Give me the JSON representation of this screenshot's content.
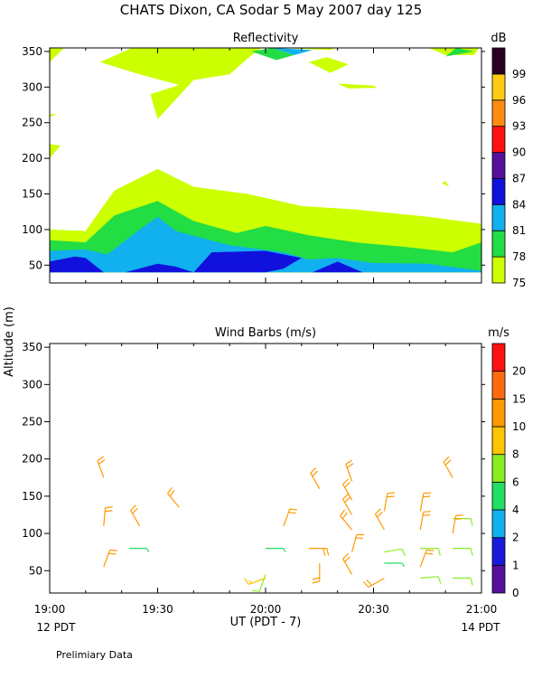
{
  "title": "CHATS Dixon, CA  Sodar    5 May 2007  day 125",
  "ylabel": "Altitude (m)",
  "xlabel": "UT  (PDT - 7)",
  "x_ticks": [
    "19:00",
    "19:30",
    "20:00",
    "20:30",
    "21:00"
  ],
  "local_time_left": "12 PDT",
  "local_time_right": "14 PDT",
  "footer": "Prelimiary Data",
  "chart_data": [
    {
      "type": "heatmap",
      "title": "Reflectivity",
      "xlim_minutes_ut": [
        1140,
        1260
      ],
      "ylim": [
        25,
        355
      ],
      "y_ticks": [
        50,
        100,
        150,
        200,
        250,
        300,
        350
      ],
      "colorbar": {
        "unit": "dB",
        "levels": [
          75,
          78,
          81,
          84,
          87,
          90,
          93,
          96,
          99
        ],
        "labels": [
          "75",
          "78",
          "81",
          "84",
          "87",
          "90",
          "93",
          "96",
          "99"
        ],
        "colors": [
          "#ccff00",
          "#22dd44",
          "#11b0ee",
          "#1111dd",
          "#55119c",
          "#ff1111",
          "#ff8c11",
          "#ffcc11",
          "#2a0025"
        ]
      },
      "regions": [
        {
          "level": 75,
          "points": [
            [
              1140,
              100
            ],
            [
              1150,
              98
            ],
            [
              1158,
              155
            ],
            [
              1170,
              185
            ],
            [
              1180,
              160
            ],
            [
              1195,
              150
            ],
            [
              1210,
              133
            ],
            [
              1225,
              128
            ],
            [
              1245,
              118
            ],
            [
              1260,
              108
            ],
            [
              1260,
              40
            ],
            [
              1140,
              40
            ]
          ]
        },
        {
          "level": 75,
          "points": [
            [
              1140,
              220
            ],
            [
              1143,
              218
            ],
            [
              1140,
              200
            ]
          ]
        },
        {
          "level": 75,
          "points": [
            [
              1140,
              335
            ],
            [
              1145,
              360
            ],
            [
              1140,
              360
            ]
          ]
        },
        {
          "level": 75,
          "points": [
            [
              1140,
              262
            ],
            [
              1142,
              262
            ],
            [
              1140,
              258
            ]
          ]
        },
        {
          "level": 75,
          "points": [
            [
              1154,
              335
            ],
            [
              1165,
              318
            ],
            [
              1176,
              303
            ],
            [
              1168,
              290
            ],
            [
              1170,
              255
            ],
            [
              1180,
              310
            ],
            [
              1190,
              318
            ],
            [
              1195,
              340
            ],
            [
              1200,
              360
            ],
            [
              1165,
              360
            ]
          ]
        },
        {
          "level": 75,
          "points": [
            [
              1180,
              360
            ],
            [
              1218,
              352
            ],
            [
              1222,
              360
            ]
          ]
        },
        {
          "level": 75,
          "points": [
            [
              1212,
              335
            ],
            [
              1218,
              320
            ],
            [
              1223,
              332
            ],
            [
              1217,
              342
            ]
          ]
        },
        {
          "level": 75,
          "points": [
            [
              1220,
              305
            ],
            [
              1230,
              302
            ],
            [
              1231,
              299
            ],
            [
              1223,
              298
            ]
          ]
        },
        {
          "level": 75,
          "points": [
            [
              1243,
              360
            ],
            [
              1250,
              345
            ],
            [
              1258,
              345
            ],
            [
              1260,
              360
            ]
          ]
        },
        {
          "level": 75,
          "points": [
            [
              1249,
              165
            ],
            [
              1251,
              160
            ],
            [
              1250,
              168
            ]
          ]
        },
        {
          "level": 78,
          "points": [
            [
              1140,
              85
            ],
            [
              1150,
              82
            ],
            [
              1158,
              120
            ],
            [
              1170,
              140
            ],
            [
              1180,
              112
            ],
            [
              1192,
              95
            ],
            [
              1200,
              105
            ],
            [
              1212,
              92
            ],
            [
              1225,
              82
            ],
            [
              1240,
              75
            ],
            [
              1252,
              68
            ],
            [
              1260,
              82
            ],
            [
              1260,
              40
            ],
            [
              1140,
              40
            ]
          ]
        },
        {
          "level": 78,
          "points": [
            [
              1196,
              350
            ],
            [
              1202,
              355
            ],
            [
              1208,
              345
            ],
            [
              1203,
              338
            ]
          ]
        },
        {
          "level": 78,
          "points": [
            [
              1250,
              343
            ],
            [
              1253,
              355
            ],
            [
              1258,
              350
            ]
          ]
        },
        {
          "level": 81,
          "points": [
            [
              1140,
              70
            ],
            [
              1150,
              72
            ],
            [
              1156,
              65
            ],
            [
              1165,
              100
            ],
            [
              1170,
              118
            ],
            [
              1175,
              98
            ],
            [
              1190,
              78
            ],
            [
              1205,
              68
            ],
            [
              1212,
              58
            ],
            [
              1220,
              60
            ],
            [
              1230,
              53
            ],
            [
              1245,
              52
            ],
            [
              1260,
              42
            ],
            [
              1260,
              40
            ],
            [
              1140,
              40
            ]
          ]
        },
        {
          "level": 81,
          "points": [
            [
              1202,
              355
            ],
            [
              1208,
              345
            ],
            [
              1213,
              352
            ]
          ]
        },
        {
          "level": 84,
          "points": [
            [
              1140,
              40
            ],
            [
              1140,
              55
            ],
            [
              1147,
              62
            ],
            [
              1150,
              60
            ],
            [
              1155,
              40
            ]
          ]
        },
        {
          "level": 84,
          "points": [
            [
              1161,
              40
            ],
            [
              1170,
              52
            ],
            [
              1175,
              48
            ],
            [
              1180,
              40
            ]
          ]
        },
        {
          "level": 84,
          "points": [
            [
              1180,
              40
            ],
            [
              1185,
              68
            ],
            [
              1200,
              70
            ],
            [
              1210,
              60
            ],
            [
              1205,
              45
            ],
            [
              1200,
              40
            ]
          ]
        },
        {
          "level": 84,
          "points": [
            [
              1213,
              40
            ],
            [
              1220,
              55
            ],
            [
              1227,
              40
            ]
          ]
        }
      ]
    },
    {
      "type": "scatter",
      "title": "Wind Barbs (m/s)",
      "xlim_minutes_ut": [
        1140,
        1260
      ],
      "ylim": [
        20,
        355
      ],
      "y_ticks": [
        50,
        100,
        150,
        200,
        250,
        300,
        350
      ],
      "colorbar": {
        "unit": "m/s",
        "levels": [
          0,
          1,
          2,
          4,
          6,
          8,
          10,
          15,
          20
        ],
        "labels": [
          "0",
          "1",
          "2",
          "4",
          "6",
          "8",
          "10",
          "15",
          "20"
        ],
        "colors": [
          "#55119c",
          "#1a1add",
          "#11b0ee",
          "#22dd66",
          "#88ee22",
          "#ffc400",
          "#ff9900",
          "#ff6a11",
          "#ff1111"
        ]
      },
      "barbs": [
        {
          "t": 1155,
          "alt": 175,
          "speed": 10,
          "dir": 340
        },
        {
          "t": 1155,
          "alt": 110,
          "speed": 10,
          "dir": 5
        },
        {
          "t": 1155,
          "alt": 55,
          "speed": 10,
          "dir": 20
        },
        {
          "t": 1162,
          "alt": 80,
          "speed": 4,
          "dir": 90
        },
        {
          "t": 1165,
          "alt": 110,
          "speed": 10,
          "dir": 330
        },
        {
          "t": 1176,
          "alt": 135,
          "speed": 10,
          "dir": 320
        },
        {
          "t": 1200,
          "alt": 80,
          "speed": 4,
          "dir": 90
        },
        {
          "t": 1200,
          "alt": 45,
          "speed": 6,
          "dir": 200
        },
        {
          "t": 1200,
          "alt": 40,
          "speed": 8,
          "dir": 250
        },
        {
          "t": 1205,
          "alt": 110,
          "speed": 10,
          "dir": 20
        },
        {
          "t": 1212,
          "alt": 80,
          "speed": 10,
          "dir": 90
        },
        {
          "t": 1215,
          "alt": 160,
          "speed": 10,
          "dir": 330
        },
        {
          "t": 1215,
          "alt": 60,
          "speed": 10,
          "dir": 180
        },
        {
          "t": 1224,
          "alt": 170,
          "speed": 10,
          "dir": 340
        },
        {
          "t": 1224,
          "alt": 145,
          "speed": 10,
          "dir": 330
        },
        {
          "t": 1224,
          "alt": 125,
          "speed": 10,
          "dir": 330
        },
        {
          "t": 1224,
          "alt": 105,
          "speed": 10,
          "dir": 320
        },
        {
          "t": 1224,
          "alt": 75,
          "speed": 10,
          "dir": 15
        },
        {
          "t": 1224,
          "alt": 45,
          "speed": 10,
          "dir": 330
        },
        {
          "t": 1233,
          "alt": 130,
          "speed": 10,
          "dir": 10
        },
        {
          "t": 1233,
          "alt": 105,
          "speed": 10,
          "dir": 330
        },
        {
          "t": 1233,
          "alt": 75,
          "speed": 6,
          "dir": 80
        },
        {
          "t": 1233,
          "alt": 60,
          "speed": 4,
          "dir": 90
        },
        {
          "t": 1233,
          "alt": 40,
          "speed": 10,
          "dir": 240
        },
        {
          "t": 1243,
          "alt": 130,
          "speed": 10,
          "dir": 10
        },
        {
          "t": 1243,
          "alt": 105,
          "speed": 10,
          "dir": 10
        },
        {
          "t": 1243,
          "alt": 80,
          "speed": 6,
          "dir": 90
        },
        {
          "t": 1243,
          "alt": 55,
          "speed": 10,
          "dir": 20
        },
        {
          "t": 1243,
          "alt": 40,
          "speed": 6,
          "dir": 85
        },
        {
          "t": 1252,
          "alt": 175,
          "speed": 10,
          "dir": 330
        },
        {
          "t": 1252,
          "alt": 120,
          "speed": 6,
          "dir": 90
        },
        {
          "t": 1252,
          "alt": 100,
          "speed": 10,
          "dir": 10
        },
        {
          "t": 1252,
          "alt": 80,
          "speed": 6,
          "dir": 90
        },
        {
          "t": 1252,
          "alt": 40,
          "speed": 6,
          "dir": 90
        }
      ]
    }
  ]
}
